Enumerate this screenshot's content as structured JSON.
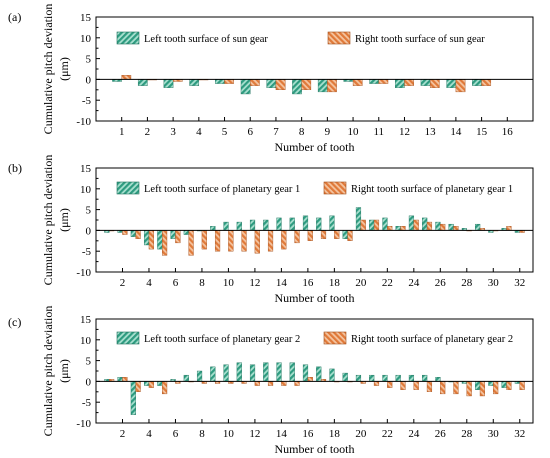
{
  "colors": {
    "left": "#2e9b80",
    "right": "#e07a3a",
    "left_light": "#a8e0cf",
    "right_light": "#f4c4a0"
  },
  "chart_data": [
    {
      "type": "bar",
      "panel": "(a)",
      "xlabel": "Number of tooth",
      "ylabel": [
        "Cumulative pitch deviation",
        "(μm)"
      ],
      "ylim": [
        -10,
        15
      ],
      "yticks": [
        -10,
        -5,
        0,
        5,
        10,
        15
      ],
      "xticks": [
        1,
        2,
        3,
        4,
        5,
        6,
        7,
        8,
        9,
        10,
        11,
        12,
        13,
        14,
        15,
        16
      ],
      "xrange": [
        0,
        17
      ],
      "legend": "top",
      "series": [
        {
          "name": "Left tooth surface of sun gear",
          "pattern": "left",
          "x": [
            1,
            2,
            3,
            4,
            5,
            6,
            7,
            8,
            9,
            10,
            11,
            12,
            13,
            14,
            15
          ],
          "values": [
            -0.5,
            -1.5,
            -2.0,
            -1.5,
            -1.0,
            -3.5,
            -2.0,
            -3.5,
            -3.0,
            -0.5,
            -1.0,
            -2.0,
            -1.5,
            -2.0,
            -1.5
          ]
        },
        {
          "name": "Right tooth surface of sun gear",
          "pattern": "right",
          "x": [
            1,
            2,
            3,
            4,
            5,
            6,
            7,
            8,
            9,
            10,
            11,
            12,
            13,
            14,
            15
          ],
          "values": [
            1.0,
            0,
            -0.5,
            0,
            -1.0,
            -1.5,
            -2.5,
            -2.5,
            -3.0,
            -1.5,
            -1.0,
            -1.5,
            -2.0,
            -3.0,
            -1.5
          ]
        }
      ]
    },
    {
      "type": "bar",
      "panel": "(b)",
      "xlabel": "Number of tooth",
      "ylabel": [
        "Cumulative pitch deviation",
        "(μm)"
      ],
      "ylim": [
        -10,
        15
      ],
      "yticks": [
        -10,
        -5,
        0,
        5,
        10,
        15
      ],
      "xticks": [
        2,
        4,
        6,
        8,
        10,
        12,
        14,
        16,
        18,
        20,
        22,
        24,
        26,
        28,
        30,
        32
      ],
      "xrange": [
        0,
        33
      ],
      "legend": "top",
      "series": [
        {
          "name": "Left tooth surface of planetary gear 1",
          "pattern": "left",
          "x": [
            1,
            2,
            3,
            4,
            5,
            6,
            7,
            8,
            9,
            10,
            11,
            12,
            13,
            14,
            15,
            16,
            17,
            18,
            19,
            20,
            21,
            22,
            23,
            24,
            25,
            26,
            27,
            28,
            29,
            30,
            31,
            32
          ],
          "values": [
            -0.5,
            -0.5,
            -1.5,
            -3.5,
            -4.5,
            -2.0,
            -1.0,
            0,
            1.0,
            2.0,
            2.0,
            2.5,
            2.5,
            3.0,
            3.0,
            3.5,
            3.0,
            3.5,
            -2.0,
            5.5,
            2.5,
            3.0,
            1.0,
            3.5,
            3.0,
            2.0,
            1.5,
            0.5,
            1.5,
            -0.5,
            0.5,
            -0.5
          ]
        },
        {
          "name": "Right tooth surface of planetary gear 1",
          "pattern": "right",
          "x": [
            1,
            2,
            3,
            4,
            5,
            6,
            7,
            8,
            9,
            10,
            11,
            12,
            13,
            14,
            15,
            16,
            17,
            18,
            19,
            20,
            21,
            22,
            23,
            24,
            25,
            26,
            27,
            28,
            29,
            30,
            31,
            32
          ],
          "values": [
            0,
            -1.0,
            -2.0,
            -4.5,
            -6.0,
            -3.0,
            -6.0,
            -4.5,
            -5.0,
            -5.0,
            -5.0,
            -5.5,
            -5.0,
            -4.5,
            -3.0,
            -2.5,
            -2.0,
            -2.0,
            -2.5,
            2.5,
            2.5,
            1.0,
            1.0,
            2.5,
            2.0,
            1.5,
            1.0,
            0,
            0.5,
            0,
            1.0,
            -0.5
          ]
        }
      ]
    },
    {
      "type": "bar",
      "panel": "(c)",
      "xlabel": "Number of tooth",
      "ylabel": [
        "Cumulative pitch deviation",
        "(μm)"
      ],
      "ylim": [
        -10,
        15
      ],
      "yticks": [
        -10,
        -5,
        0,
        5,
        10,
        15
      ],
      "xticks": [
        2,
        4,
        6,
        8,
        10,
        12,
        14,
        16,
        18,
        20,
        22,
        24,
        26,
        28,
        30,
        32
      ],
      "xrange": [
        0,
        33
      ],
      "legend": "top",
      "series": [
        {
          "name": "Left tooth surface of planetary gear 2",
          "pattern": "left",
          "x": [
            1,
            2,
            3,
            4,
            5,
            6,
            7,
            8,
            9,
            10,
            11,
            12,
            13,
            14,
            15,
            16,
            17,
            18,
            19,
            20,
            21,
            22,
            23,
            24,
            25,
            26,
            27,
            28,
            29,
            30,
            31,
            32
          ],
          "values": [
            0.5,
            1.0,
            -8.0,
            -1.0,
            -1.0,
            0.5,
            1.5,
            2.5,
            3.5,
            4.0,
            4.5,
            4.0,
            4.5,
            4.5,
            4.5,
            4.0,
            3.5,
            3.0,
            2.0,
            1.5,
            1.5,
            1.5,
            1.5,
            1.5,
            1.5,
            1.0,
            0,
            -0.5,
            -2.0,
            -1.0,
            -1.5,
            -0.5
          ]
        },
        {
          "name": "Right tooth surface of planetary gear 2",
          "pattern": "right",
          "x": [
            1,
            2,
            3,
            4,
            5,
            6,
            7,
            8,
            9,
            10,
            11,
            12,
            13,
            14,
            15,
            16,
            17,
            18,
            19,
            20,
            21,
            22,
            23,
            24,
            25,
            26,
            27,
            28,
            29,
            30,
            31,
            32
          ],
          "values": [
            0.5,
            1.0,
            -2.5,
            -1.5,
            -3.0,
            -0.5,
            0,
            -0.5,
            -0.5,
            -0.5,
            -0.5,
            -1.0,
            -1.0,
            -1.0,
            -1.0,
            1.0,
            0.5,
            0,
            0,
            -0.5,
            -1.0,
            -1.5,
            -2.0,
            -2.0,
            -2.5,
            -3.0,
            -3.0,
            -3.5,
            -3.5,
            -3.0,
            -2.0,
            -2.0
          ]
        }
      ]
    }
  ]
}
